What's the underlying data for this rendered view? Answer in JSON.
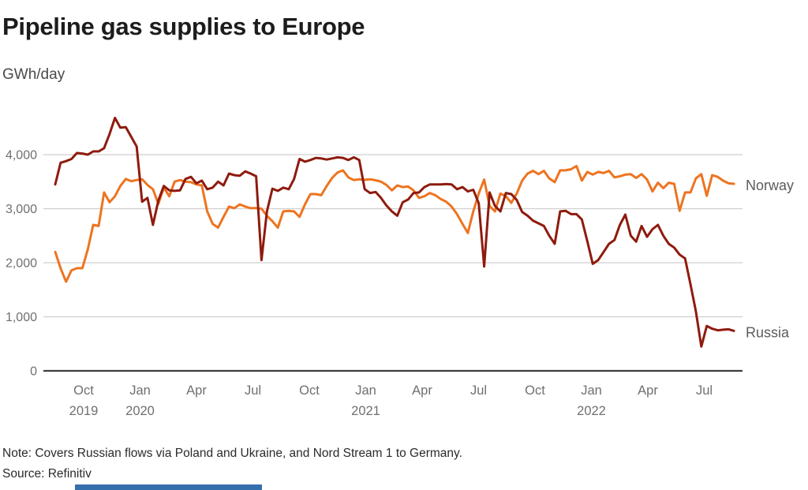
{
  "header": {
    "title": "Pipeline gas supplies to Europe",
    "units_label": "GWh/day"
  },
  "footer": {
    "note": "Note: Covers Russian flows via Poland and Ukraine, and Nord Stream 1 to Germany.",
    "source": "Source: Refinitiv"
  },
  "colors": {
    "norway_line": "#ed7420",
    "russia_line": "#8e1b0e",
    "grid": "#cfcfcf",
    "axis": "#3f3f3f",
    "tick_text": "#6f6f6f",
    "series_label_text": "#5c5c5c",
    "accent_bar": "#3570ad"
  },
  "chart_data": {
    "type": "line",
    "title": "Pipeline gas supplies to Europe",
    "ylabel": "GWh/day",
    "xlabel": "",
    "grid": true,
    "legend_position": "right-of-line-end",
    "ylim": [
      0,
      4800
    ],
    "yticks": [
      0,
      1000,
      2000,
      3000,
      4000
    ],
    "ytick_labels": [
      "0",
      "1,000",
      "2,000",
      "3,000",
      "4,000"
    ],
    "x_start": 2019.624,
    "x_step": 0.02406,
    "x_unit": "decimal_year_weekly_cadence",
    "xticks": [
      {
        "t": 2019.75,
        "month": "Oct",
        "year": "2019"
      },
      {
        "t": 2020.0,
        "month": "Jan",
        "year": "2020"
      },
      {
        "t": 2020.25,
        "month": "Apr",
        "year": ""
      },
      {
        "t": 2020.5,
        "month": "Jul",
        "year": ""
      },
      {
        "t": 2020.75,
        "month": "Oct",
        "year": ""
      },
      {
        "t": 2021.0,
        "month": "Jan",
        "year": "2021"
      },
      {
        "t": 2021.25,
        "month": "Apr",
        "year": ""
      },
      {
        "t": 2021.5,
        "month": "Jul",
        "year": ""
      },
      {
        "t": 2021.75,
        "month": "Oct",
        "year": ""
      },
      {
        "t": 2022.0,
        "month": "Jan",
        "year": "2022"
      },
      {
        "t": 2022.25,
        "month": "Apr",
        "year": ""
      },
      {
        "t": 2022.5,
        "month": "Jul",
        "year": ""
      }
    ],
    "series": [
      {
        "name": "Norway",
        "color": "#ed7420",
        "values": [
          2200,
          1900,
          1650,
          1860,
          1900,
          1900,
          2250,
          2700,
          2680,
          3300,
          3120,
          3230,
          3420,
          3550,
          3510,
          3530,
          3545,
          3440,
          3360,
          3090,
          3390,
          3230,
          3500,
          3530,
          3500,
          3490,
          3450,
          3430,
          2950,
          2720,
          2650,
          2850,
          3040,
          3010,
          3080,
          3040,
          3010,
          3010,
          3000,
          2870,
          2770,
          2650,
          2950,
          2960,
          2950,
          2850,
          3080,
          3270,
          3270,
          3250,
          3420,
          3570,
          3670,
          3710,
          3580,
          3530,
          3545,
          3535,
          3545,
          3525,
          3500,
          3440,
          3340,
          3430,
          3400,
          3410,
          3340,
          3200,
          3230,
          3290,
          3250,
          3180,
          3130,
          3040,
          2900,
          2720,
          2550,
          2950,
          3280,
          3540,
          3050,
          2950,
          3280,
          3230,
          3110,
          3280,
          3520,
          3650,
          3700,
          3640,
          3700,
          3560,
          3490,
          3710,
          3710,
          3730,
          3790,
          3520,
          3680,
          3630,
          3680,
          3660,
          3700,
          3580,
          3600,
          3630,
          3640,
          3570,
          3640,
          3540,
          3320,
          3480,
          3380,
          3480,
          3460,
          2960,
          3300,
          3300,
          3560,
          3640,
          3240,
          3620,
          3590,
          3520,
          3470,
          3460
        ]
      },
      {
        "name": "Russia",
        "color": "#8e1b0e",
        "values": [
          3450,
          3850,
          3880,
          3920,
          4030,
          4020,
          4000,
          4060,
          4060,
          4120,
          4380,
          4680,
          4500,
          4510,
          4330,
          4150,
          3130,
          3200,
          2700,
          3150,
          3420,
          3340,
          3330,
          3340,
          3550,
          3590,
          3470,
          3520,
          3360,
          3390,
          3500,
          3430,
          3650,
          3620,
          3610,
          3690,
          3650,
          3600,
          2050,
          2950,
          3370,
          3330,
          3390,
          3360,
          3550,
          3920,
          3870,
          3900,
          3940,
          3930,
          3910,
          3930,
          3950,
          3940,
          3900,
          3950,
          3900,
          3360,
          3290,
          3310,
          3200,
          3060,
          2950,
          2870,
          3120,
          3170,
          3290,
          3300,
          3400,
          3450,
          3450,
          3450,
          3455,
          3450,
          3360,
          3400,
          3320,
          3350,
          3100,
          1930,
          3300,
          3050,
          2950,
          3290,
          3270,
          3160,
          2940,
          2870,
          2780,
          2730,
          2680,
          2500,
          2350,
          2950,
          2960,
          2900,
          2900,
          2800,
          2400,
          1980,
          2050,
          2200,
          2350,
          2420,
          2700,
          2890,
          2500,
          2390,
          2680,
          2480,
          2620,
          2700,
          2500,
          2350,
          2280,
          2150,
          2080,
          1600,
          1100,
          450,
          830,
          780,
          750,
          760,
          770,
          740
        ]
      }
    ]
  }
}
